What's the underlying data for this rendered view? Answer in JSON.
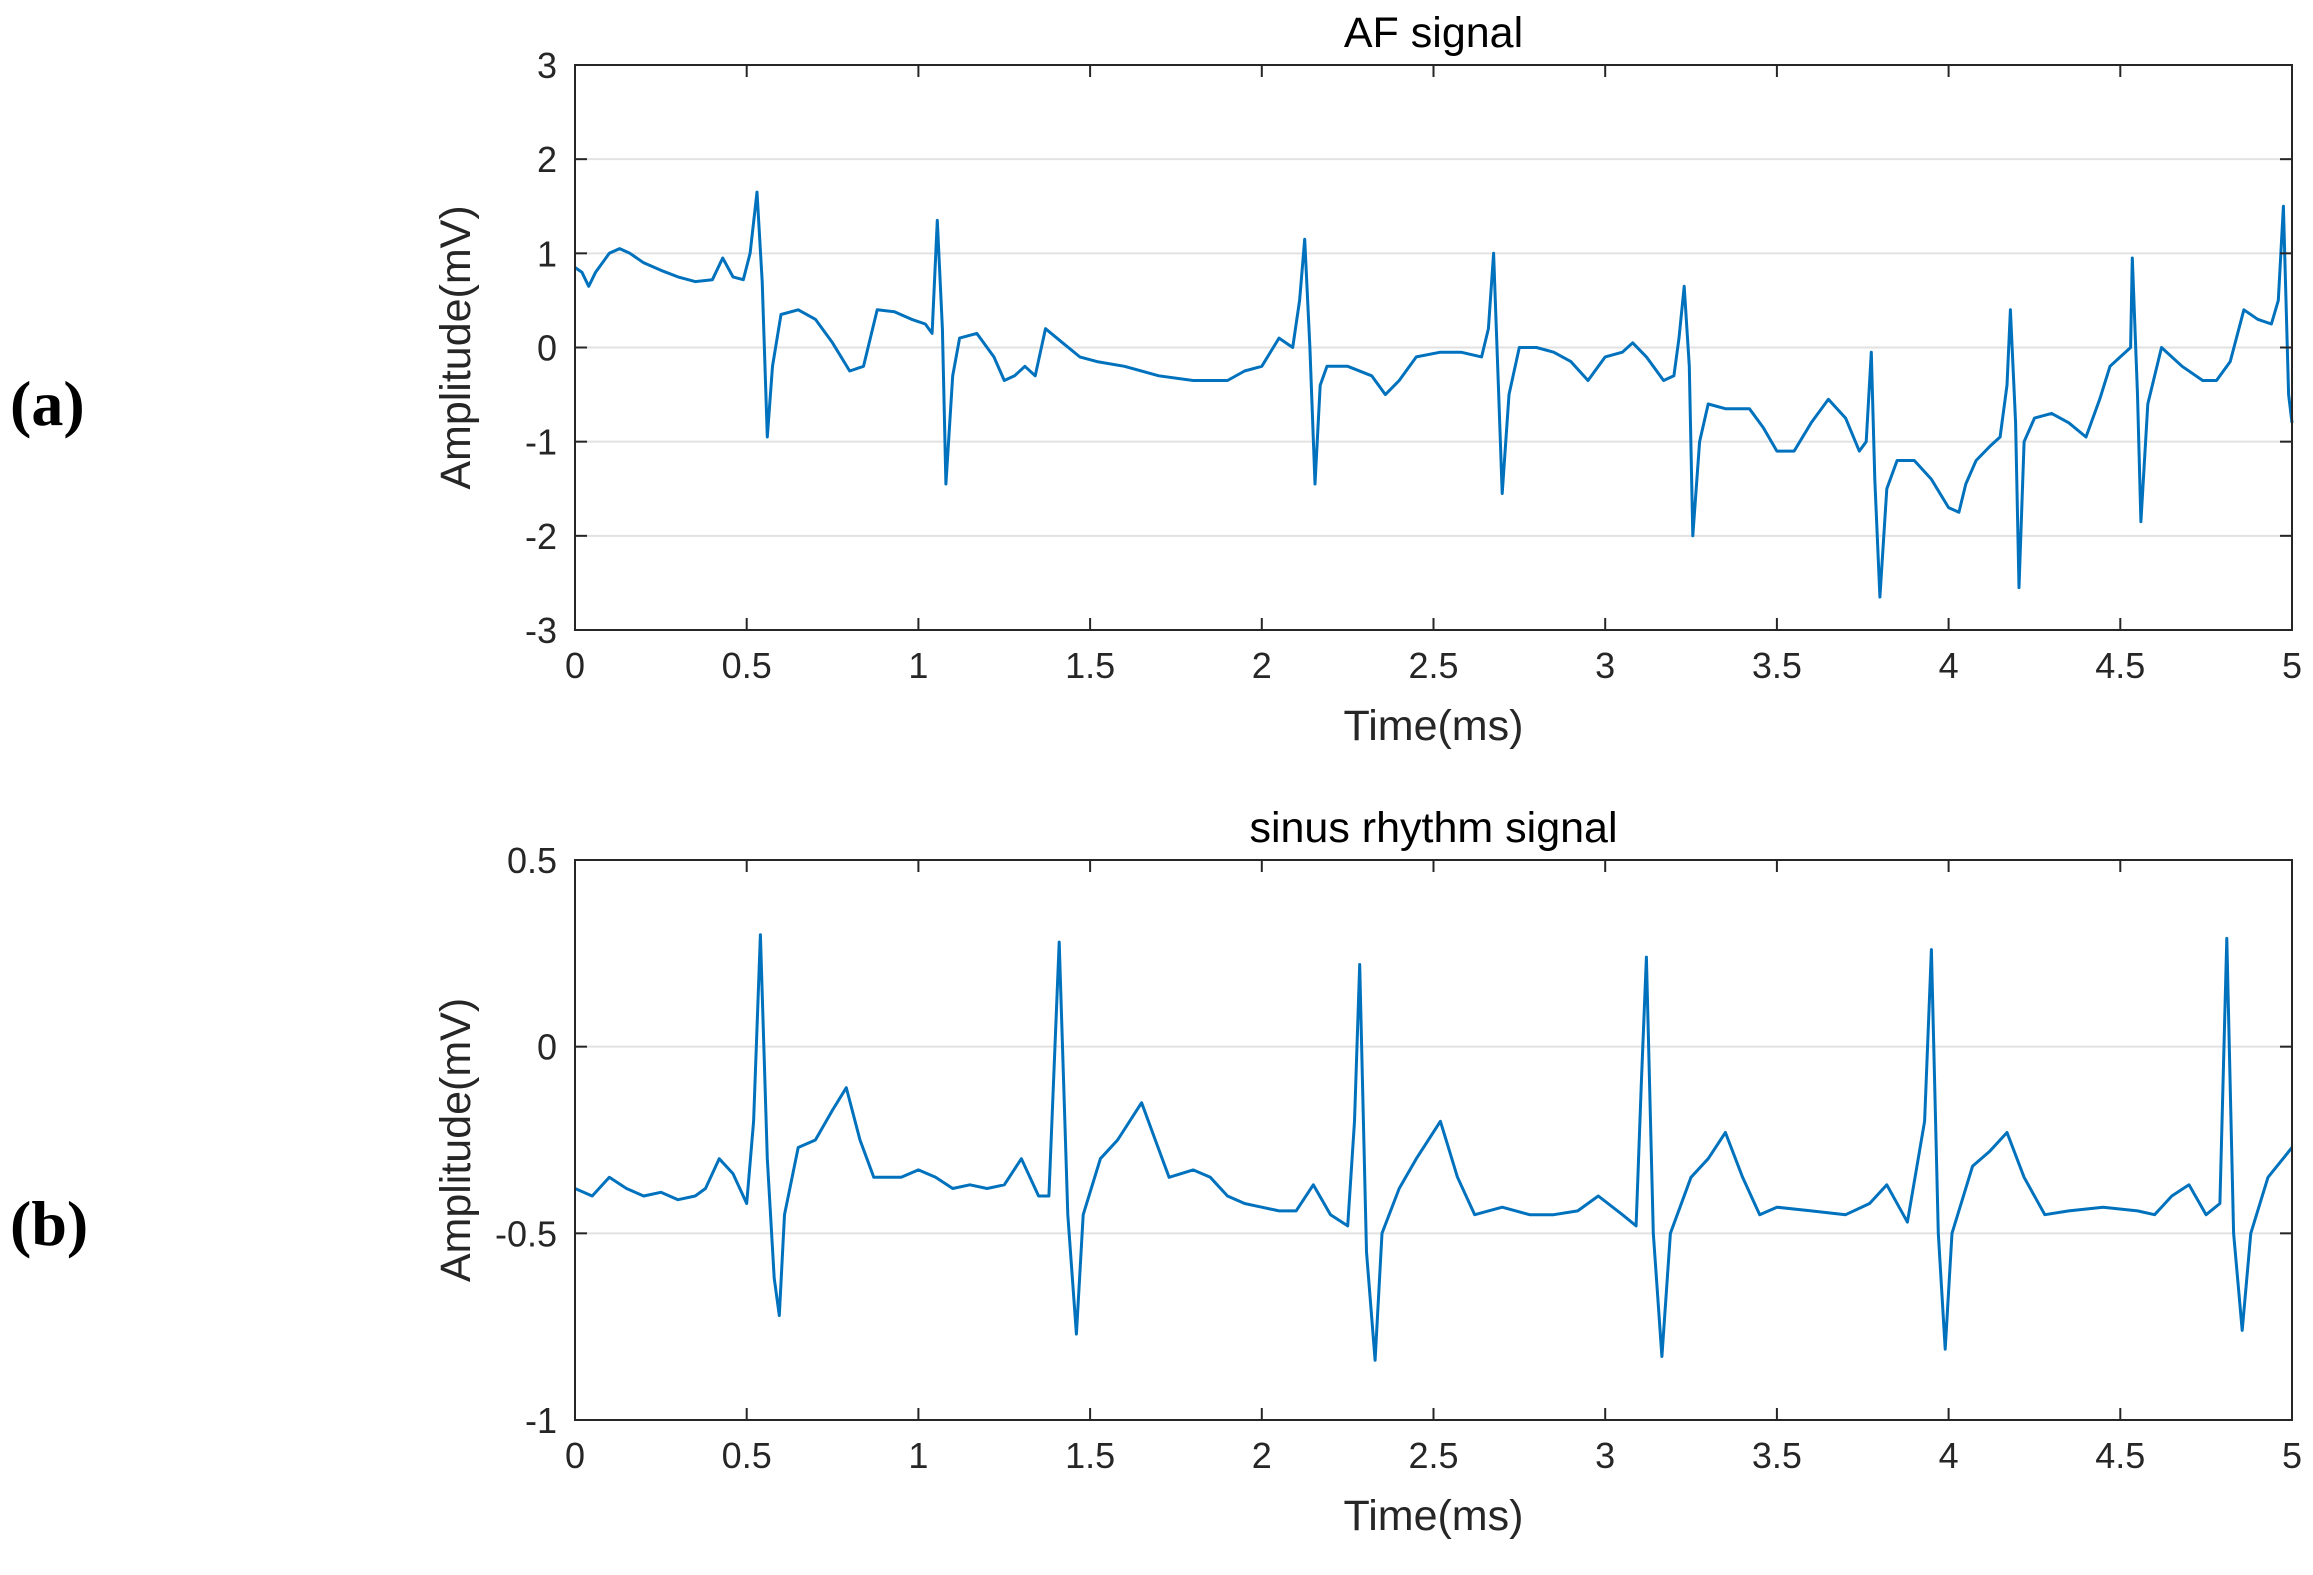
{
  "chart_data": [
    {
      "type": "line",
      "panel_label": "(a)",
      "title": "AF signal",
      "xlabel": "Time(ms)",
      "ylabel": "Amplitude(mV)",
      "xlim": [
        0,
        5
      ],
      "ylim": [
        -3,
        3
      ],
      "xticks": [
        0,
        0.5,
        1,
        1.5,
        2,
        2.5,
        3,
        3.5,
        4,
        4.5,
        5
      ],
      "yticks": [
        -3,
        -2,
        -1,
        0,
        1,
        2,
        3
      ],
      "grid": "horizontal",
      "series": [
        {
          "name": "AF signal",
          "color": "#0072BD",
          "points": [
            [
              0,
              0.85
            ],
            [
              0.02,
              0.8
            ],
            [
              0.04,
              0.65
            ],
            [
              0.06,
              0.8
            ],
            [
              0.1,
              1.0
            ],
            [
              0.13,
              1.05
            ],
            [
              0.16,
              1.0
            ],
            [
              0.2,
              0.9
            ],
            [
              0.25,
              0.82
            ],
            [
              0.3,
              0.75
            ],
            [
              0.35,
              0.7
            ],
            [
              0.4,
              0.72
            ],
            [
              0.43,
              0.95
            ],
            [
              0.46,
              0.75
            ],
            [
              0.49,
              0.72
            ],
            [
              0.51,
              1.0
            ],
            [
              0.53,
              1.65
            ],
            [
              0.545,
              0.7
            ],
            [
              0.56,
              -0.95
            ],
            [
              0.575,
              -0.2
            ],
            [
              0.6,
              0.35
            ],
            [
              0.65,
              0.4
            ],
            [
              0.7,
              0.3
            ],
            [
              0.75,
              0.05
            ],
            [
              0.8,
              -0.25
            ],
            [
              0.84,
              -0.2
            ],
            [
              0.88,
              0.4
            ],
            [
              0.93,
              0.38
            ],
            [
              0.98,
              0.3
            ],
            [
              1.02,
              0.25
            ],
            [
              1.04,
              0.15
            ],
            [
              1.055,
              1.35
            ],
            [
              1.07,
              0.2
            ],
            [
              1.08,
              -1.45
            ],
            [
              1.1,
              -0.3
            ],
            [
              1.12,
              0.1
            ],
            [
              1.17,
              0.15
            ],
            [
              1.22,
              -0.1
            ],
            [
              1.25,
              -0.35
            ],
            [
              1.28,
              -0.3
            ],
            [
              1.31,
              -0.2
            ],
            [
              1.34,
              -0.3
            ],
            [
              1.37,
              0.2
            ],
            [
              1.42,
              0.05
            ],
            [
              1.47,
              -0.1
            ],
            [
              1.52,
              -0.15
            ],
            [
              1.6,
              -0.2
            ],
            [
              1.7,
              -0.3
            ],
            [
              1.8,
              -0.35
            ],
            [
              1.9,
              -0.35
            ],
            [
              1.95,
              -0.25
            ],
            [
              2.0,
              -0.2
            ],
            [
              2.05,
              0.1
            ],
            [
              2.09,
              0.0
            ],
            [
              2.11,
              0.5
            ],
            [
              2.125,
              1.15
            ],
            [
              2.14,
              0.0
            ],
            [
              2.155,
              -1.45
            ],
            [
              2.17,
              -0.4
            ],
            [
              2.19,
              -0.2
            ],
            [
              2.25,
              -0.2
            ],
            [
              2.32,
              -0.3
            ],
            [
              2.36,
              -0.5
            ],
            [
              2.4,
              -0.35
            ],
            [
              2.45,
              -0.1
            ],
            [
              2.52,
              -0.05
            ],
            [
              2.58,
              -0.05
            ],
            [
              2.64,
              -0.1
            ],
            [
              2.66,
              0.2
            ],
            [
              2.675,
              1.0
            ],
            [
              2.69,
              -0.5
            ],
            [
              2.7,
              -1.55
            ],
            [
              2.72,
              -0.5
            ],
            [
              2.75,
              0.0
            ],
            [
              2.8,
              0.0
            ],
            [
              2.85,
              -0.05
            ],
            [
              2.9,
              -0.15
            ],
            [
              2.95,
              -0.35
            ],
            [
              3.0,
              -0.1
            ],
            [
              3.05,
              -0.05
            ],
            [
              3.08,
              0.05
            ],
            [
              3.12,
              -0.1
            ],
            [
              3.17,
              -0.35
            ],
            [
              3.2,
              -0.3
            ],
            [
              3.215,
              0.1
            ],
            [
              3.23,
              0.65
            ],
            [
              3.245,
              -0.2
            ],
            [
              3.255,
              -2.0
            ],
            [
              3.275,
              -1.0
            ],
            [
              3.3,
              -0.6
            ],
            [
              3.35,
              -0.65
            ],
            [
              3.42,
              -0.65
            ],
            [
              3.46,
              -0.85
            ],
            [
              3.5,
              -1.1
            ],
            [
              3.55,
              -1.1
            ],
            [
              3.6,
              -0.8
            ],
            [
              3.65,
              -0.55
            ],
            [
              3.7,
              -0.75
            ],
            [
              3.74,
              -1.1
            ],
            [
              3.76,
              -1.0
            ],
            [
              3.775,
              -0.05
            ],
            [
              3.785,
              -1.4
            ],
            [
              3.8,
              -2.65
            ],
            [
              3.82,
              -1.5
            ],
            [
              3.85,
              -1.2
            ],
            [
              3.9,
              -1.2
            ],
            [
              3.95,
              -1.4
            ],
            [
              4.0,
              -1.7
            ],
            [
              4.03,
              -1.75
            ],
            [
              4.05,
              -1.45
            ],
            [
              4.08,
              -1.2
            ],
            [
              4.12,
              -1.05
            ],
            [
              4.15,
              -0.95
            ],
            [
              4.17,
              -0.4
            ],
            [
              4.18,
              0.4
            ],
            [
              4.195,
              -0.8
            ],
            [
              4.205,
              -2.55
            ],
            [
              4.22,
              -1.0
            ],
            [
              4.25,
              -0.75
            ],
            [
              4.3,
              -0.7
            ],
            [
              4.35,
              -0.8
            ],
            [
              4.4,
              -0.95
            ],
            [
              4.44,
              -0.55
            ],
            [
              4.47,
              -0.2
            ],
            [
              4.5,
              -0.1
            ],
            [
              4.53,
              0.0
            ],
            [
              4.535,
              0.95
            ],
            [
              4.55,
              -0.5
            ],
            [
              4.56,
              -1.85
            ],
            [
              4.58,
              -0.6
            ],
            [
              4.62,
              0.0
            ],
            [
              4.68,
              -0.2
            ],
            [
              4.74,
              -0.35
            ],
            [
              4.78,
              -0.35
            ],
            [
              4.82,
              -0.15
            ],
            [
              4.86,
              0.4
            ],
            [
              4.9,
              0.3
            ],
            [
              4.94,
              0.25
            ],
            [
              4.96,
              0.5
            ],
            [
              4.975,
              1.5
            ],
            [
              4.99,
              -0.5
            ],
            [
              5.0,
              -0.8
            ]
          ]
        }
      ]
    },
    {
      "type": "line",
      "panel_label": "(b)",
      "title": "sinus rhythm signal",
      "xlabel": "Time(ms)",
      "ylabel": "Amplitude(mV)",
      "xlim": [
        0,
        5
      ],
      "ylim": [
        -1,
        0.5
      ],
      "xticks": [
        0,
        0.5,
        1,
        1.5,
        2,
        2.5,
        3,
        3.5,
        4,
        4.5,
        5
      ],
      "yticks": [
        -1,
        -0.5,
        0,
        0.5
      ],
      "ytick_labels": [
        "-1",
        "-0.5",
        "0",
        "0.5"
      ],
      "grid": "horizontal",
      "series": [
        {
          "name": "sinus rhythm signal",
          "color": "#0072BD",
          "points": [
            [
              0,
              -0.38
            ],
            [
              0.05,
              -0.4
            ],
            [
              0.1,
              -0.35
            ],
            [
              0.15,
              -0.38
            ],
            [
              0.2,
              -0.4
            ],
            [
              0.25,
              -0.39
            ],
            [
              0.3,
              -0.41
            ],
            [
              0.35,
              -0.4
            ],
            [
              0.38,
              -0.38
            ],
            [
              0.42,
              -0.3
            ],
            [
              0.46,
              -0.34
            ],
            [
              0.5,
              -0.42
            ],
            [
              0.52,
              -0.2
            ],
            [
              0.54,
              0.3
            ],
            [
              0.56,
              -0.3
            ],
            [
              0.58,
              -0.62
            ],
            [
              0.595,
              -0.72
            ],
            [
              0.61,
              -0.45
            ],
            [
              0.65,
              -0.27
            ],
            [
              0.7,
              -0.25
            ],
            [
              0.75,
              -0.17
            ],
            [
              0.79,
              -0.11
            ],
            [
              0.83,
              -0.25
            ],
            [
              0.87,
              -0.35
            ],
            [
              0.95,
              -0.35
            ],
            [
              1.0,
              -0.33
            ],
            [
              1.05,
              -0.35
            ],
            [
              1.1,
              -0.38
            ],
            [
              1.15,
              -0.37
            ],
            [
              1.2,
              -0.38
            ],
            [
              1.25,
              -0.37
            ],
            [
              1.3,
              -0.3
            ],
            [
              1.35,
              -0.4
            ],
            [
              1.38,
              -0.4
            ],
            [
              1.41,
              0.28
            ],
            [
              1.435,
              -0.45
            ],
            [
              1.46,
              -0.77
            ],
            [
              1.48,
              -0.45
            ],
            [
              1.53,
              -0.3
            ],
            [
              1.58,
              -0.25
            ],
            [
              1.65,
              -0.15
            ],
            [
              1.69,
              -0.25
            ],
            [
              1.73,
              -0.35
            ],
            [
              1.8,
              -0.33
            ],
            [
              1.85,
              -0.35
            ],
            [
              1.9,
              -0.4
            ],
            [
              1.95,
              -0.42
            ],
            [
              2.0,
              -0.43
            ],
            [
              2.05,
              -0.44
            ],
            [
              2.1,
              -0.44
            ],
            [
              2.15,
              -0.37
            ],
            [
              2.2,
              -0.45
            ],
            [
              2.25,
              -0.48
            ],
            [
              2.27,
              -0.2
            ],
            [
              2.285,
              0.22
            ],
            [
              2.305,
              -0.55
            ],
            [
              2.33,
              -0.84
            ],
            [
              2.35,
              -0.5
            ],
            [
              2.4,
              -0.38
            ],
            [
              2.45,
              -0.3
            ],
            [
              2.52,
              -0.2
            ],
            [
              2.57,
              -0.35
            ],
            [
              2.62,
              -0.45
            ],
            [
              2.7,
              -0.43
            ],
            [
              2.78,
              -0.45
            ],
            [
              2.85,
              -0.45
            ],
            [
              2.92,
              -0.44
            ],
            [
              2.98,
              -0.4
            ],
            [
              3.05,
              -0.45
            ],
            [
              3.09,
              -0.48
            ],
            [
              3.105,
              -0.1
            ],
            [
              3.12,
              0.24
            ],
            [
              3.14,
              -0.5
            ],
            [
              3.165,
              -0.83
            ],
            [
              3.19,
              -0.5
            ],
            [
              3.25,
              -0.35
            ],
            [
              3.3,
              -0.3
            ],
            [
              3.35,
              -0.23
            ],
            [
              3.4,
              -0.35
            ],
            [
              3.45,
              -0.45
            ],
            [
              3.5,
              -0.43
            ],
            [
              3.6,
              -0.44
            ],
            [
              3.7,
              -0.45
            ],
            [
              3.77,
              -0.42
            ],
            [
              3.82,
              -0.37
            ],
            [
              3.88,
              -0.47
            ],
            [
              3.93,
              -0.2
            ],
            [
              3.95,
              0.26
            ],
            [
              3.97,
              -0.5
            ],
            [
              3.99,
              -0.81
            ],
            [
              4.01,
              -0.5
            ],
            [
              4.07,
              -0.32
            ],
            [
              4.12,
              -0.28
            ],
            [
              4.17,
              -0.23
            ],
            [
              4.22,
              -0.35
            ],
            [
              4.28,
              -0.45
            ],
            [
              4.35,
              -0.44
            ],
            [
              4.45,
              -0.43
            ],
            [
              4.55,
              -0.44
            ],
            [
              4.6,
              -0.45
            ],
            [
              4.65,
              -0.4
            ],
            [
              4.7,
              -0.37
            ],
            [
              4.75,
              -0.45
            ],
            [
              4.79,
              -0.42
            ],
            [
              4.81,
              0.29
            ],
            [
              4.83,
              -0.5
            ],
            [
              4.855,
              -0.76
            ],
            [
              4.88,
              -0.5
            ],
            [
              4.93,
              -0.35
            ],
            [
              5.0,
              -0.27
            ]
          ]
        }
      ]
    }
  ]
}
